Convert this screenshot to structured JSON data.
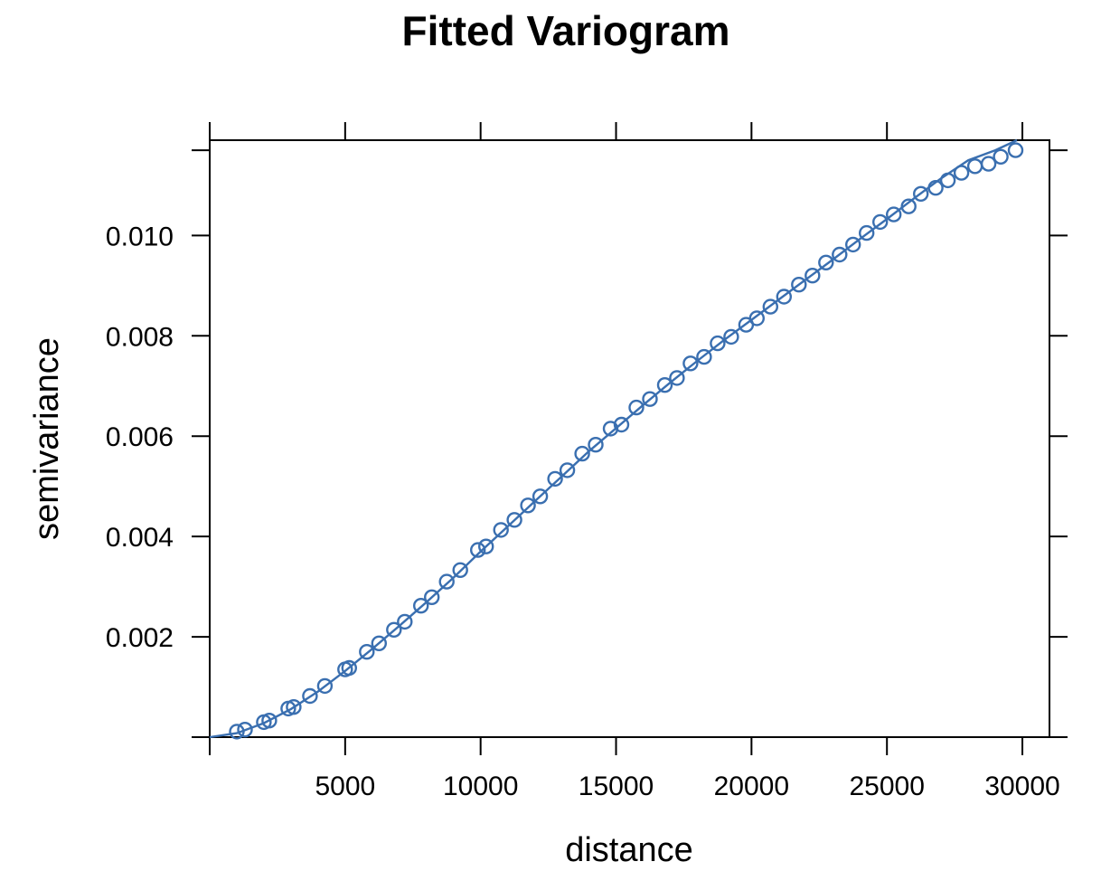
{
  "colors": {
    "series": "#3a6fb0",
    "axis": "#000000",
    "background": "#ffffff"
  },
  "chart_data": {
    "type": "scatter",
    "title": "Fitted Variogram",
    "xlabel": "distance",
    "ylabel": "semivariance",
    "xlim": [
      0,
      31000
    ],
    "ylim": [
      0,
      0.0119
    ],
    "x_ticks": [
      5000,
      10000,
      15000,
      20000,
      25000,
      30000
    ],
    "x_tick_labels": [
      "5000",
      "10000",
      "15000",
      "20000",
      "25000",
      "30000"
    ],
    "y_ticks": [
      0.002,
      0.004,
      0.006,
      0.008,
      0.01
    ],
    "y_tick_labels": [
      "0.002",
      "0.004",
      "0.006",
      "0.008",
      "0.010"
    ],
    "grid": false,
    "legend": "none",
    "series": [
      {
        "kind": "points",
        "marker": "open-circle",
        "points": [
          [
            1000,
            0.00011
          ],
          [
            1300,
            0.00015
          ],
          [
            2000,
            0.0003
          ],
          [
            2200,
            0.00033
          ],
          [
            2900,
            0.00057
          ],
          [
            3100,
            0.0006
          ],
          [
            3700,
            0.00082
          ],
          [
            4250,
            0.00102
          ],
          [
            5000,
            0.00135
          ],
          [
            5150,
            0.00138
          ],
          [
            5800,
            0.0017
          ],
          [
            6250,
            0.00187
          ],
          [
            6800,
            0.00214
          ],
          [
            7200,
            0.0023
          ],
          [
            7800,
            0.00262
          ],
          [
            8200,
            0.00279
          ],
          [
            8750,
            0.0031
          ],
          [
            9250,
            0.00333
          ],
          [
            9900,
            0.00373
          ],
          [
            10200,
            0.0038
          ],
          [
            10750,
            0.00413
          ],
          [
            11250,
            0.00433
          ],
          [
            11750,
            0.00462
          ],
          [
            12200,
            0.0048
          ],
          [
            12750,
            0.00515
          ],
          [
            13200,
            0.00532
          ],
          [
            13750,
            0.00565
          ],
          [
            14250,
            0.00583
          ],
          [
            14800,
            0.00615
          ],
          [
            15200,
            0.00623
          ],
          [
            15750,
            0.00657
          ],
          [
            16250,
            0.00674
          ],
          [
            16800,
            0.00702
          ],
          [
            17250,
            0.00716
          ],
          [
            17750,
            0.00745
          ],
          [
            18250,
            0.00758
          ],
          [
            18750,
            0.00785
          ],
          [
            19250,
            0.00798
          ],
          [
            19800,
            0.00822
          ],
          [
            20200,
            0.00835
          ],
          [
            20700,
            0.00858
          ],
          [
            21200,
            0.00878
          ],
          [
            21750,
            0.00902
          ],
          [
            22250,
            0.0092
          ],
          [
            22750,
            0.00946
          ],
          [
            23250,
            0.00962
          ],
          [
            23750,
            0.00982
          ],
          [
            24250,
            0.01005
          ],
          [
            24750,
            0.01027
          ],
          [
            25250,
            0.01042
          ],
          [
            25800,
            0.01058
          ],
          [
            26250,
            0.01083
          ],
          [
            26800,
            0.01095
          ],
          [
            27250,
            0.0111
          ],
          [
            27750,
            0.01125
          ],
          [
            28250,
            0.01138
          ],
          [
            28750,
            0.01143
          ],
          [
            29200,
            0.01157
          ],
          [
            29750,
            0.0117
          ]
        ]
      },
      {
        "kind": "line",
        "points": [
          [
            0,
            0.0
          ],
          [
            1000,
            8e-05
          ],
          [
            2000,
            0.00028
          ],
          [
            3000,
            0.00056
          ],
          [
            4000,
            0.00091
          ],
          [
            5000,
            0.00132
          ],
          [
            6000,
            0.00176
          ],
          [
            7000,
            0.00222
          ],
          [
            8000,
            0.00269
          ],
          [
            9000,
            0.00318
          ],
          [
            10000,
            0.0037
          ],
          [
            11000,
            0.0042
          ],
          [
            12000,
            0.0047
          ],
          [
            13000,
            0.0052
          ],
          [
            14000,
            0.0057
          ],
          [
            15000,
            0.00616
          ],
          [
            16000,
            0.00662
          ],
          [
            17000,
            0.00707
          ],
          [
            18000,
            0.0075
          ],
          [
            19000,
            0.00792
          ],
          [
            20000,
            0.00832
          ],
          [
            21000,
            0.00872
          ],
          [
            22000,
            0.00912
          ],
          [
            23000,
            0.00952
          ],
          [
            24000,
            0.00993
          ],
          [
            25000,
            0.01033
          ],
          [
            26000,
            0.01074
          ],
          [
            27000,
            0.01114
          ],
          [
            28000,
            0.0115
          ],
          [
            29000,
            0.0117
          ],
          [
            29800,
            0.0119
          ]
        ]
      }
    ]
  }
}
